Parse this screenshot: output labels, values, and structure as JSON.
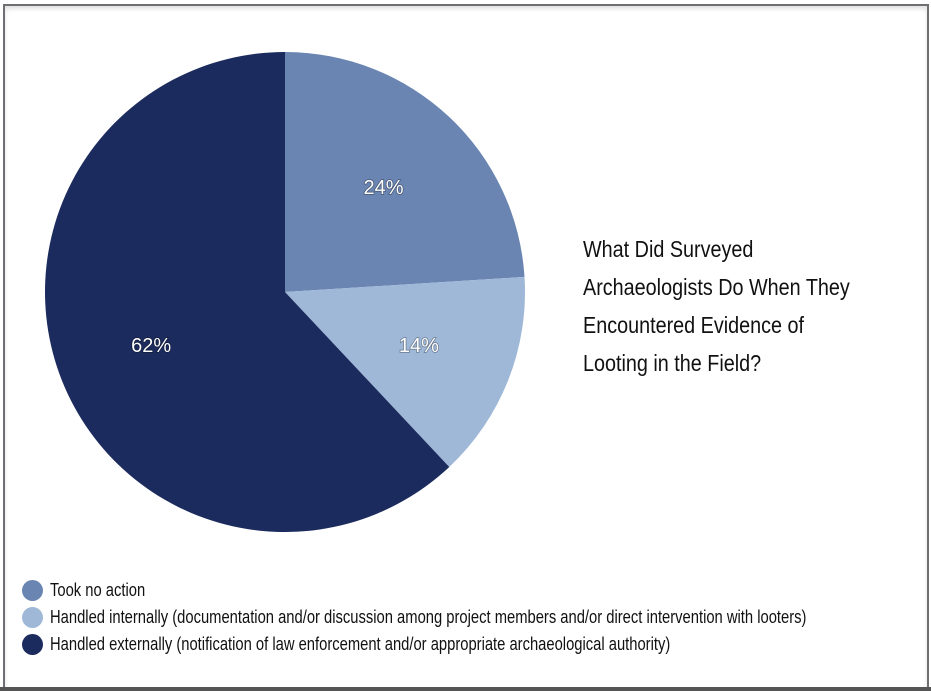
{
  "chart_data": {
    "type": "pie",
    "title_lines": [
      "What Did Surveyed",
      "Archaeologists Do When They",
      "Encountered Evidence of",
      "Looting in the Field?"
    ],
    "slices": [
      {
        "label": "Took no action",
        "value": 24,
        "data_label": "24%",
        "color": "#6a85b2"
      },
      {
        "label": "Handled internally (documentation and/or discussion among project members and/or direct intervention with looters)",
        "value": 14,
        "data_label": "14%",
        "color": "#9fb8d8"
      },
      {
        "label": "Handled externally (notification of law enforcement and/or appropriate archaeological authority)",
        "value": 62,
        "data_label": "62%",
        "color": "#1c2b5e"
      }
    ],
    "start_angle": "12 o'clock",
    "direction": "clockwise",
    "legend_position": "bottom-left"
  }
}
